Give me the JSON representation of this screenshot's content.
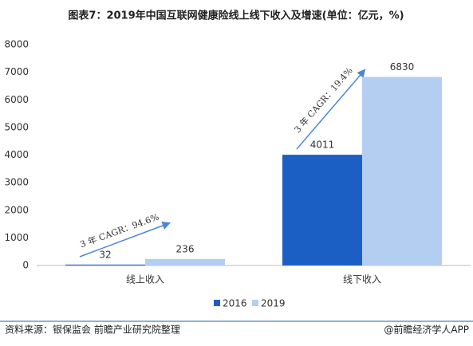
{
  "chart_data": {
    "type": "bar",
    "title": "图表7：2019年中国互联网健康险线上线下收入及增速(单位：亿元，%)",
    "categories": [
      "线上收入",
      "线下收入"
    ],
    "series": [
      {
        "name": "2016",
        "color": "#1b5fc5",
        "values": [
          32,
          4011
        ]
      },
      {
        "name": "2019",
        "color": "#b3cef1",
        "values": [
          236,
          6830
        ]
      }
    ],
    "ylim": [
      0,
      8000
    ],
    "yticks": [
      0,
      1000,
      2000,
      3000,
      4000,
      5000,
      6000,
      7000,
      8000
    ],
    "grid": false,
    "legend": "bottom",
    "annotations": [
      "3 年 CAGR：94.6%",
      "3 年 CAGR：19.4%"
    ],
    "source": "资料来源：银保监会  前瞻产业研究院整理",
    "footer": "@前瞻经济学人APP"
  }
}
